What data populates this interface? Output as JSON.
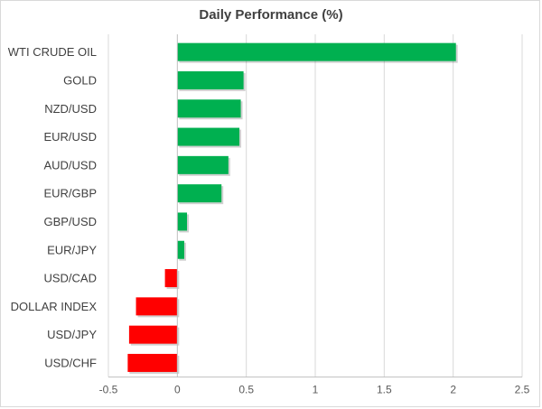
{
  "chart_data": {
    "type": "bar",
    "orientation": "horizontal",
    "title": "Daily Performance (%)",
    "xlabel": "",
    "ylabel": "",
    "xlim": [
      -0.5,
      2.5
    ],
    "x_ticks": [
      "-0.5",
      "0",
      "0.5",
      "1",
      "1.5",
      "2",
      "2.5"
    ],
    "x_tick_values": [
      -0.5,
      0,
      0.5,
      1,
      1.5,
      2,
      2.5
    ],
    "grid": "vertical major gridlines",
    "legend": "none",
    "categories": [
      "WTI CRUDE OIL",
      "GOLD",
      "NZD/USD",
      "EUR/USD",
      "AUD/USD",
      "EUR/GBP",
      "GBP/USD",
      "EUR/JPY",
      "USD/CAD",
      "DOLLAR INDEX",
      "USD/JPY",
      "USD/CHF"
    ],
    "values": [
      2.02,
      0.48,
      0.46,
      0.45,
      0.37,
      0.32,
      0.07,
      0.05,
      -0.09,
      -0.3,
      -0.35,
      -0.36
    ],
    "colors": {
      "positive": "#00b050",
      "negative": "#ff0000",
      "gridline": "#d9d9d9",
      "axis": "#bfbfbf"
    }
  }
}
